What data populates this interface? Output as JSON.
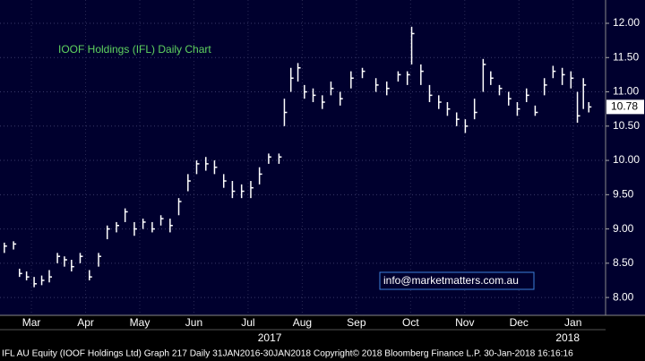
{
  "chart_data": {
    "type": "bar-hl",
    "title": "IOOF Holdings (IFL) Daily Chart",
    "annotation": "info@marketmatters.com.au",
    "footer": "IFL AU Equity (IOOF Holdings Ltd) Graph 217  Daily 31JAN2016-30JAN2018 Copyright© 2018 Bloomberg Finance L.P. 30-Jan-2018 16:16:16",
    "xlim": [
      0.92,
      12.1
    ],
    "xticks": [
      {
        "value": 1.5,
        "label": "Mar"
      },
      {
        "value": 2.5,
        "label": "Apr"
      },
      {
        "value": 3.5,
        "label": "May"
      },
      {
        "value": 4.5,
        "label": "Jun"
      },
      {
        "value": 5.5,
        "label": "Jul"
      },
      {
        "value": 6.5,
        "label": "Aug"
      },
      {
        "value": 7.5,
        "label": "Sep"
      },
      {
        "value": 8.5,
        "label": "Oct"
      },
      {
        "value": 9.5,
        "label": "Nov"
      },
      {
        "value": 10.5,
        "label": "Dec"
      },
      {
        "value": 11.5,
        "label": "Jan"
      }
    ],
    "year_ticks": [
      {
        "value": 5.9,
        "label": "2017"
      },
      {
        "value": 11.4,
        "label": "2018"
      }
    ],
    "ylim": [
      7.74,
      12.34
    ],
    "yticks": [
      {
        "value": 8,
        "label": "8.00"
      },
      {
        "value": 8.5,
        "label": "8.50"
      },
      {
        "value": 9,
        "label": "9.00"
      },
      {
        "value": 9.5,
        "label": "9.50"
      },
      {
        "value": 10,
        "label": "10.00"
      },
      {
        "value": 10.5,
        "label": "10.50"
      },
      {
        "value": 11,
        "label": "11.00"
      },
      {
        "value": 11.5,
        "label": "11.50"
      },
      {
        "value": 12,
        "label": "12.00"
      }
    ],
    "grid": true,
    "x": [
      1.0,
      1.17,
      1.28,
      1.41,
      1.55,
      1.69,
      1.83,
      1.98,
      2.11,
      2.24,
      2.4,
      2.57,
      2.74,
      2.9,
      3.07,
      3.23,
      3.4,
      3.56,
      3.73,
      3.89,
      4.06,
      4.22,
      4.39,
      4.55,
      4.72,
      4.88,
      5.05,
      5.21,
      5.38,
      5.55,
      5.71,
      5.88,
      6.07,
      6.17,
      6.29,
      6.42,
      6.54,
      6.7,
      6.87,
      7.03,
      7.2,
      7.4,
      7.61,
      7.86,
      8.06,
      8.27,
      8.44,
      8.52,
      8.69,
      8.85,
      9.02,
      9.18,
      9.35,
      9.51,
      9.68,
      9.84,
      9.98,
      10.14,
      10.31,
      10.47,
      10.64,
      10.8,
      10.97,
      11.13,
      11.3,
      11.46,
      11.58,
      11.69,
      11.79
    ],
    "series": [
      {
        "name": "IFL",
        "color": "#ffffff",
        "values": [
          8.75,
          8.78,
          8.35,
          8.3,
          8.2,
          8.25,
          8.3,
          8.6,
          8.55,
          8.45,
          8.6,
          8.3,
          8.6,
          9.0,
          9.05,
          9.25,
          9.0,
          9.1,
          9.0,
          9.15,
          9.05,
          9.4,
          9.7,
          9.95,
          9.95,
          9.9,
          9.7,
          9.55,
          9.55,
          9.6,
          9.8,
          10.05,
          10.05,
          10.7,
          11.2,
          11.35,
          11.0,
          10.95,
          10.85,
          11.05,
          10.9,
          11.2,
          11.3,
          11.1,
          11.05,
          11.25,
          11.25,
          11.85,
          11.3,
          10.95,
          10.85,
          10.75,
          10.6,
          10.5,
          10.7,
          11.4,
          11.2,
          11.05,
          10.9,
          10.75,
          10.95,
          10.7,
          11.1,
          11.3,
          11.25,
          11.2,
          10.65,
          11.1,
          10.78
        ],
        "low": [
          8.65,
          8.7,
          8.3,
          8.25,
          8.15,
          8.18,
          8.22,
          8.5,
          8.45,
          8.38,
          8.5,
          8.25,
          8.45,
          8.85,
          8.95,
          9.1,
          8.9,
          9.0,
          8.95,
          9.05,
          8.95,
          9.2,
          9.55,
          9.8,
          9.85,
          9.8,
          9.6,
          9.45,
          9.45,
          9.45,
          9.65,
          9.95,
          9.95,
          10.5,
          11.0,
          11.15,
          10.9,
          10.85,
          10.75,
          10.95,
          10.8,
          11.05,
          11.2,
          11.0,
          10.95,
          11.15,
          11.1,
          11.4,
          11.1,
          10.85,
          10.75,
          10.65,
          10.5,
          10.4,
          10.6,
          11.0,
          11.1,
          10.95,
          10.8,
          10.65,
          10.85,
          10.65,
          10.95,
          11.2,
          11.1,
          11.05,
          10.55,
          10.75,
          10.7
        ],
        "high": [
          8.8,
          8.82,
          8.42,
          8.38,
          8.3,
          8.32,
          8.4,
          8.65,
          8.6,
          8.55,
          8.65,
          8.4,
          8.65,
          9.05,
          9.1,
          9.3,
          9.1,
          9.15,
          9.1,
          9.2,
          9.15,
          9.45,
          9.8,
          10.0,
          10.05,
          10.0,
          9.8,
          9.7,
          9.65,
          9.7,
          9.9,
          10.1,
          10.1,
          10.9,
          11.35,
          11.42,
          11.1,
          11.05,
          10.95,
          11.15,
          11.0,
          11.3,
          11.35,
          11.2,
          11.15,
          11.3,
          11.3,
          11.95,
          11.4,
          11.1,
          10.95,
          10.85,
          10.7,
          10.6,
          10.9,
          11.48,
          11.3,
          11.1,
          11.0,
          10.85,
          11.05,
          10.8,
          11.2,
          11.38,
          11.35,
          11.3,
          11.0,
          11.2,
          10.85
        ]
      }
    ]
  }
}
